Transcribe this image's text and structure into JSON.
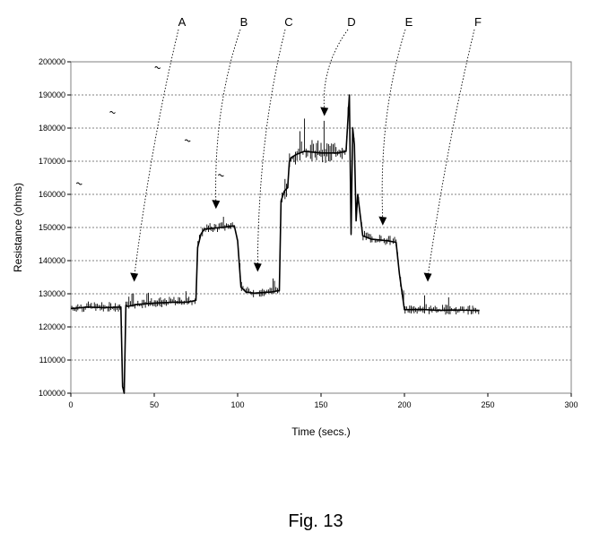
{
  "figure": {
    "caption": "Fig. 13",
    "annotation_labels": [
      "A",
      "B",
      "C",
      "D",
      "E",
      "F"
    ]
  },
  "chart_data": {
    "type": "line",
    "title": "",
    "xlabel": "Time (secs.)",
    "ylabel": "Resistance (ohms)",
    "xlim": [
      0,
      300
    ],
    "ylim": [
      100000,
      200000
    ],
    "x_ticks": [
      0,
      50,
      100,
      150,
      200,
      250,
      300
    ],
    "y_ticks": [
      100000,
      110000,
      120000,
      130000,
      140000,
      150000,
      160000,
      170000,
      180000,
      190000,
      200000
    ],
    "x_tick_labels": [
      "0",
      "50",
      "100",
      "150",
      "200",
      "250",
      "300"
    ],
    "y_tick_labels": [
      "100000",
      "110000",
      "120000",
      "130000",
      "140000",
      "150000",
      "160000",
      "170000",
      "180000",
      "190000",
      "200000"
    ],
    "grid": {
      "horizontal": true,
      "vertical": false,
      "style": "dotted"
    },
    "colors": {
      "line": "#000000",
      "grid": "#808080",
      "frame": "#808080"
    },
    "series": [
      {
        "x": [
          0,
          10,
          20,
          30,
          31,
          32,
          33,
          34,
          40,
          50,
          60,
          70,
          75,
          76,
          78,
          80,
          90,
          98,
          100,
          102,
          105,
          110,
          120,
          125,
          126,
          128,
          130,
          131,
          132,
          135,
          140,
          150,
          160,
          165,
          167,
          168,
          169,
          170,
          171,
          172,
          175,
          180,
          190,
          195,
          197,
          200,
          210,
          220,
          230,
          240,
          245
        ],
        "y": [
          125500,
          126000,
          125800,
          126000,
          102000,
          100000,
          126500,
          126200,
          126800,
          127200,
          127400,
          127500,
          128000,
          144000,
          148000,
          149500,
          150000,
          150500,
          146000,
          132000,
          130500,
          130200,
          130500,
          131000,
          158000,
          161000,
          162000,
          170000,
          171000,
          172000,
          173000,
          172500,
          172500,
          173000,
          190000,
          148000,
          180000,
          175000,
          152000,
          160000,
          147500,
          146500,
          146000,
          145500,
          136000,
          125200,
          125300,
          125000,
          125100,
          125000,
          125000
        ]
      }
    ],
    "annotations": [
      {
        "label": "A",
        "x": 38,
        "y": 133000
      },
      {
        "label": "B",
        "x": 87,
        "y": 155000
      },
      {
        "label": "C",
        "x": 112,
        "y": 136000
      },
      {
        "label": "D",
        "x": 152,
        "y": 183000
      },
      {
        "label": "E",
        "x": 187,
        "y": 150000
      },
      {
        "label": "F",
        "x": 214,
        "y": 133000
      }
    ],
    "stray_marks": [
      {
        "x": 5,
        "y": 163500
      },
      {
        "x": 25,
        "y": 185000
      },
      {
        "x": 52,
        "y": 198500
      },
      {
        "x": 70,
        "y": 176500
      },
      {
        "x": 90,
        "y": 166000
      }
    ]
  }
}
